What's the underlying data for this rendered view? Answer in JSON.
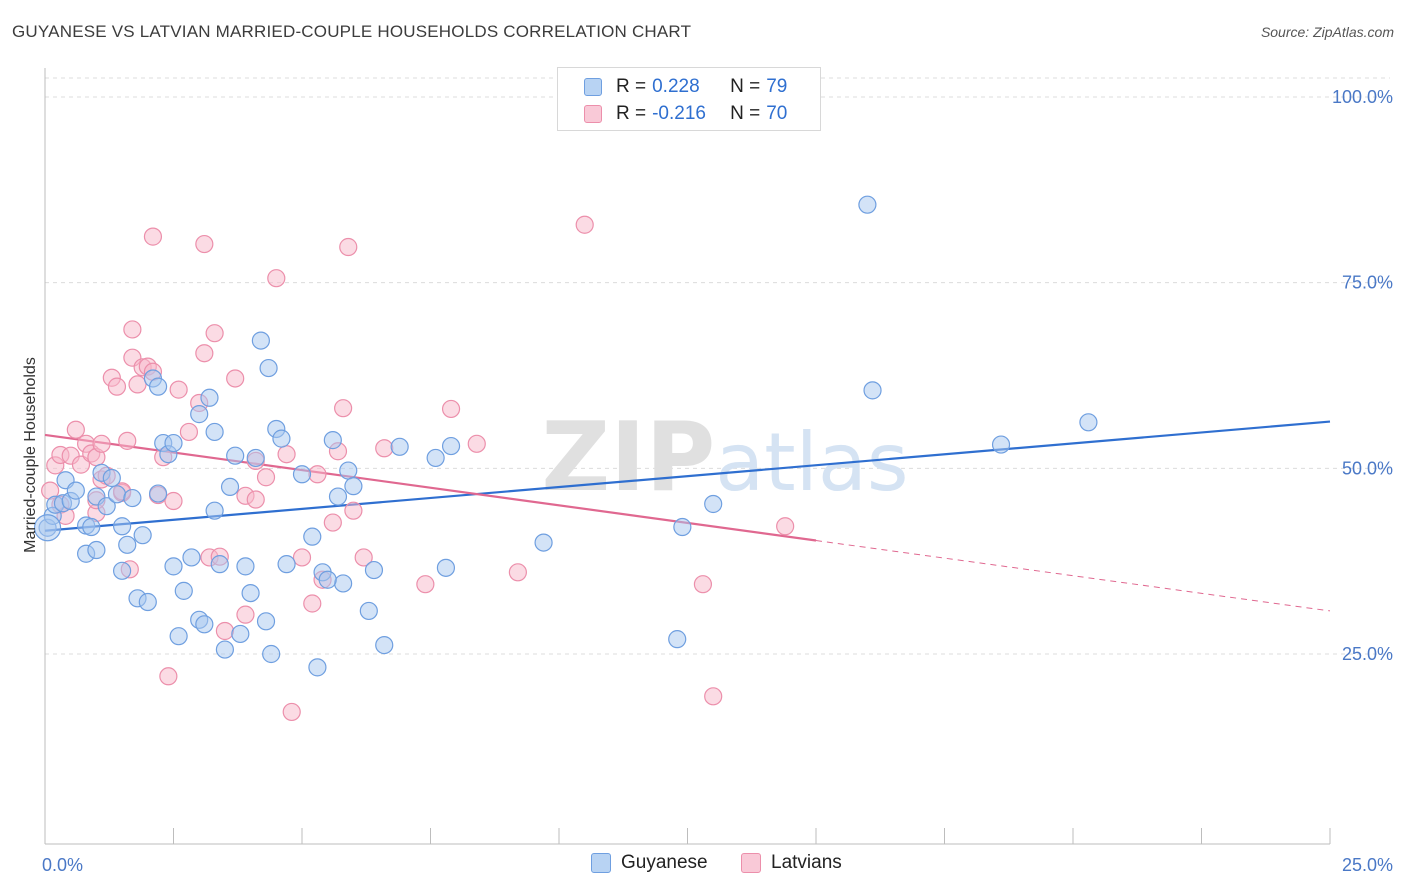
{
  "header": {
    "title": "GUYANESE VS LATVIAN MARRIED-COUPLE HOUSEHOLDS CORRELATION CHART",
    "source": "Source: ZipAtlas.com"
  },
  "legend": {
    "rows": [
      {
        "r_label": "R =",
        "r_value": "0.228",
        "n_label": "N =",
        "n_value": "79"
      },
      {
        "r_label": "R =",
        "r_value": "-0.216",
        "n_label": "N =",
        "n_value": "70"
      }
    ]
  },
  "bottom_legend": {
    "items": [
      {
        "label": "Guyanese"
      },
      {
        "label": "Latvians"
      }
    ]
  },
  "colors": {
    "blue_fill": "#a8c8f0",
    "blue_stroke": "#6f9fe0",
    "blue_line": "#2f6fd0",
    "pink_fill": "#f7b8ca",
    "pink_stroke": "#ec8fab",
    "pink_line": "#e06890",
    "grid": "#dcdcdc",
    "axis_text": "#4a78c6"
  },
  "chart_data": {
    "type": "scatter",
    "title": "GUYANESE VS LATVIAN MARRIED-COUPLE HOUSEHOLDS CORRELATION CHART",
    "xlabel": "",
    "ylabel": "Married-couple Households",
    "xlim": [
      0,
      25
    ],
    "ylim": [
      0,
      105
    ],
    "x_tick_labels": [
      "0.0%",
      "25.0%"
    ],
    "y_ticks": [
      25,
      50,
      75,
      100
    ],
    "y_tick_labels": [
      "25.0%",
      "50.0%",
      "75.0%",
      "100.0%"
    ],
    "watermark": "ZIPatlas",
    "series": [
      {
        "name": "Guyanese",
        "r": 0.228,
        "n": 79,
        "trend": {
          "x0": 0,
          "y0": 41.6,
          "x1": 25,
          "y1": 56.3,
          "dashed_from": null
        },
        "points": [
          [
            0.05,
            42.0
          ],
          [
            0.15,
            43.6
          ],
          [
            0.2,
            45.1
          ],
          [
            0.35,
            45.3
          ],
          [
            0.4,
            48.4
          ],
          [
            0.5,
            45.6
          ],
          [
            0.6,
            47.0
          ],
          [
            0.8,
            42.3
          ],
          [
            0.8,
            38.5
          ],
          [
            0.9,
            42.1
          ],
          [
            1.0,
            46.2
          ],
          [
            1.0,
            39.0
          ],
          [
            1.1,
            49.4
          ],
          [
            1.2,
            44.9
          ],
          [
            1.3,
            48.7
          ],
          [
            1.4,
            46.5
          ],
          [
            1.5,
            36.2
          ],
          [
            1.5,
            42.2
          ],
          [
            1.6,
            39.7
          ],
          [
            1.7,
            46.0
          ],
          [
            1.8,
            32.5
          ],
          [
            1.9,
            41.0
          ],
          [
            2.0,
            32.0
          ],
          [
            2.1,
            62.1
          ],
          [
            2.2,
            46.6
          ],
          [
            2.2,
            61.0
          ],
          [
            2.3,
            53.4
          ],
          [
            2.4,
            51.9
          ],
          [
            2.5,
            53.4
          ],
          [
            2.5,
            36.8
          ],
          [
            2.6,
            27.4
          ],
          [
            2.7,
            33.5
          ],
          [
            2.85,
            38.0
          ],
          [
            3.0,
            29.6
          ],
          [
            3.0,
            57.3
          ],
          [
            3.1,
            29.0
          ],
          [
            3.2,
            59.5
          ],
          [
            3.3,
            44.3
          ],
          [
            3.3,
            54.9
          ],
          [
            3.4,
            37.1
          ],
          [
            3.5,
            25.6
          ],
          [
            3.6,
            47.5
          ],
          [
            3.7,
            51.7
          ],
          [
            3.8,
            27.7
          ],
          [
            3.9,
            36.8
          ],
          [
            4.0,
            33.2
          ],
          [
            4.1,
            51.4
          ],
          [
            4.2,
            67.2
          ],
          [
            4.3,
            29.4
          ],
          [
            4.35,
            63.5
          ],
          [
            4.4,
            25.0
          ],
          [
            4.5,
            55.3
          ],
          [
            4.6,
            54.0
          ],
          [
            4.7,
            37.1
          ],
          [
            5.0,
            49.2
          ],
          [
            5.2,
            40.8
          ],
          [
            5.3,
            23.2
          ],
          [
            5.4,
            36.0
          ],
          [
            5.6,
            53.8
          ],
          [
            5.7,
            46.2
          ],
          [
            5.8,
            34.5
          ],
          [
            5.9,
            49.7
          ],
          [
            6.0,
            47.6
          ],
          [
            6.3,
            30.8
          ],
          [
            6.4,
            36.3
          ],
          [
            6.9,
            52.9
          ],
          [
            7.6,
            51.4
          ],
          [
            7.9,
            53.0
          ],
          [
            7.8,
            36.6
          ],
          [
            9.7,
            40.0
          ],
          [
            12.3,
            27.0
          ],
          [
            12.4,
            42.1
          ],
          [
            13.0,
            45.2
          ],
          [
            16.0,
            85.5
          ],
          [
            16.1,
            60.5
          ],
          [
            18.6,
            53.2
          ],
          [
            20.3,
            56.2
          ],
          [
            5.5,
            35.0
          ],
          [
            6.6,
            26.2
          ]
        ]
      },
      {
        "name": "Latvians",
        "r": -0.216,
        "n": 70,
        "trend": {
          "x0": 0,
          "y0": 54.5,
          "x1": 25,
          "y1": 30.8,
          "dashed_from": 15
        },
        "points": [
          [
            0.1,
            47.0
          ],
          [
            0.2,
            50.4
          ],
          [
            0.3,
            45.1
          ],
          [
            0.3,
            51.8
          ],
          [
            0.4,
            43.6
          ],
          [
            0.5,
            51.7
          ],
          [
            0.6,
            55.2
          ],
          [
            0.7,
            50.5
          ],
          [
            0.8,
            53.3
          ],
          [
            0.9,
            52.0
          ],
          [
            1.0,
            44.0
          ],
          [
            1.0,
            51.5
          ],
          [
            1.1,
            48.5
          ],
          [
            1.1,
            53.3
          ],
          [
            1.2,
            49.0
          ],
          [
            1.3,
            62.2
          ],
          [
            1.4,
            61.0
          ],
          [
            1.5,
            46.7
          ],
          [
            1.6,
            53.7
          ],
          [
            1.65,
            36.4
          ],
          [
            1.7,
            68.7
          ],
          [
            1.7,
            64.9
          ],
          [
            1.8,
            61.3
          ],
          [
            1.9,
            63.6
          ],
          [
            2.0,
            63.7
          ],
          [
            2.1,
            81.2
          ],
          [
            2.1,
            63.0
          ],
          [
            2.2,
            46.4
          ],
          [
            2.3,
            51.5
          ],
          [
            2.4,
            22.0
          ],
          [
            2.5,
            45.6
          ],
          [
            2.6,
            60.6
          ],
          [
            2.8,
            54.9
          ],
          [
            3.0,
            58.8
          ],
          [
            3.1,
            65.5
          ],
          [
            3.1,
            80.2
          ],
          [
            3.2,
            38.0
          ],
          [
            3.3,
            68.2
          ],
          [
            3.4,
            38.1
          ],
          [
            3.5,
            28.1
          ],
          [
            3.7,
            62.1
          ],
          [
            3.9,
            46.3
          ],
          [
            3.9,
            30.3
          ],
          [
            4.1,
            45.8
          ],
          [
            4.1,
            51.0
          ],
          [
            4.3,
            48.8
          ],
          [
            4.5,
            75.6
          ],
          [
            4.7,
            51.9
          ],
          [
            4.8,
            17.2
          ],
          [
            5.0,
            38.0
          ],
          [
            5.2,
            31.8
          ],
          [
            5.3,
            49.2
          ],
          [
            5.4,
            35.0
          ],
          [
            5.6,
            42.7
          ],
          [
            5.7,
            52.3
          ],
          [
            5.8,
            58.1
          ],
          [
            5.9,
            79.8
          ],
          [
            6.0,
            44.3
          ],
          [
            6.2,
            38.0
          ],
          [
            6.6,
            52.7
          ],
          [
            7.4,
            34.4
          ],
          [
            7.9,
            58.0
          ],
          [
            8.4,
            53.3
          ],
          [
            9.2,
            36.0
          ],
          [
            10.5,
            82.8
          ],
          [
            12.8,
            34.4
          ],
          [
            13.0,
            19.3
          ],
          [
            14.4,
            42.2
          ],
          [
            1.5,
            46.9
          ],
          [
            1.0,
            45.7
          ]
        ]
      }
    ]
  }
}
